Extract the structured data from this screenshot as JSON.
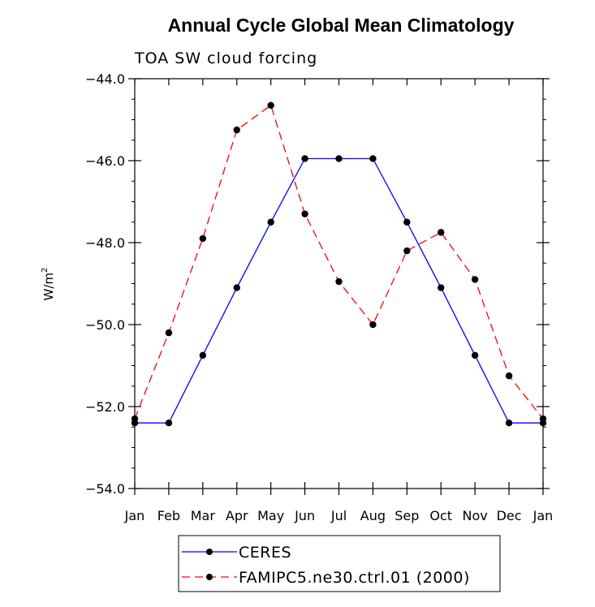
{
  "chart_data": {
    "type": "line",
    "title": "Annual Cycle Global Mean Climatology",
    "subtitle": "TOA SW cloud forcing",
    "xlabel": "",
    "ylabel": "W/m",
    "ylabel_sup": "2",
    "categories": [
      "Jan",
      "Feb",
      "Mar",
      "Apr",
      "May",
      "Jun",
      "Jul",
      "Aug",
      "Sep",
      "Oct",
      "Nov",
      "Dec",
      "Jan"
    ],
    "ylim": [
      -54.0,
      -44.0
    ],
    "yticks": [
      -54.0,
      -52.0,
      -50.0,
      -48.0,
      -46.0,
      -44.0
    ],
    "ytick_labels": [
      "−54.0",
      "−52.0",
      "−50.0",
      "−48.0",
      "−46.0",
      "−44.0"
    ],
    "series": [
      {
        "name": "CERES",
        "color": "#0000ff",
        "dash": "solid",
        "values": [
          -52.4,
          -52.4,
          -50.75,
          -49.1,
          -47.5,
          -45.95,
          -45.95,
          -45.95,
          -47.5,
          -49.1,
          -50.75,
          -52.4,
          -52.4
        ]
      },
      {
        "name": "FAMIPC5.ne30.ctrl.01 (2000)",
        "color": "#ff0000",
        "dash": "dashed",
        "values": [
          -52.3,
          -50.2,
          -47.9,
          -45.25,
          -44.65,
          -47.3,
          -48.95,
          -50.0,
          -48.2,
          -47.75,
          -48.9,
          -51.25,
          -52.3
        ]
      }
    ],
    "legend_position": "bottom-center",
    "grid": false
  }
}
